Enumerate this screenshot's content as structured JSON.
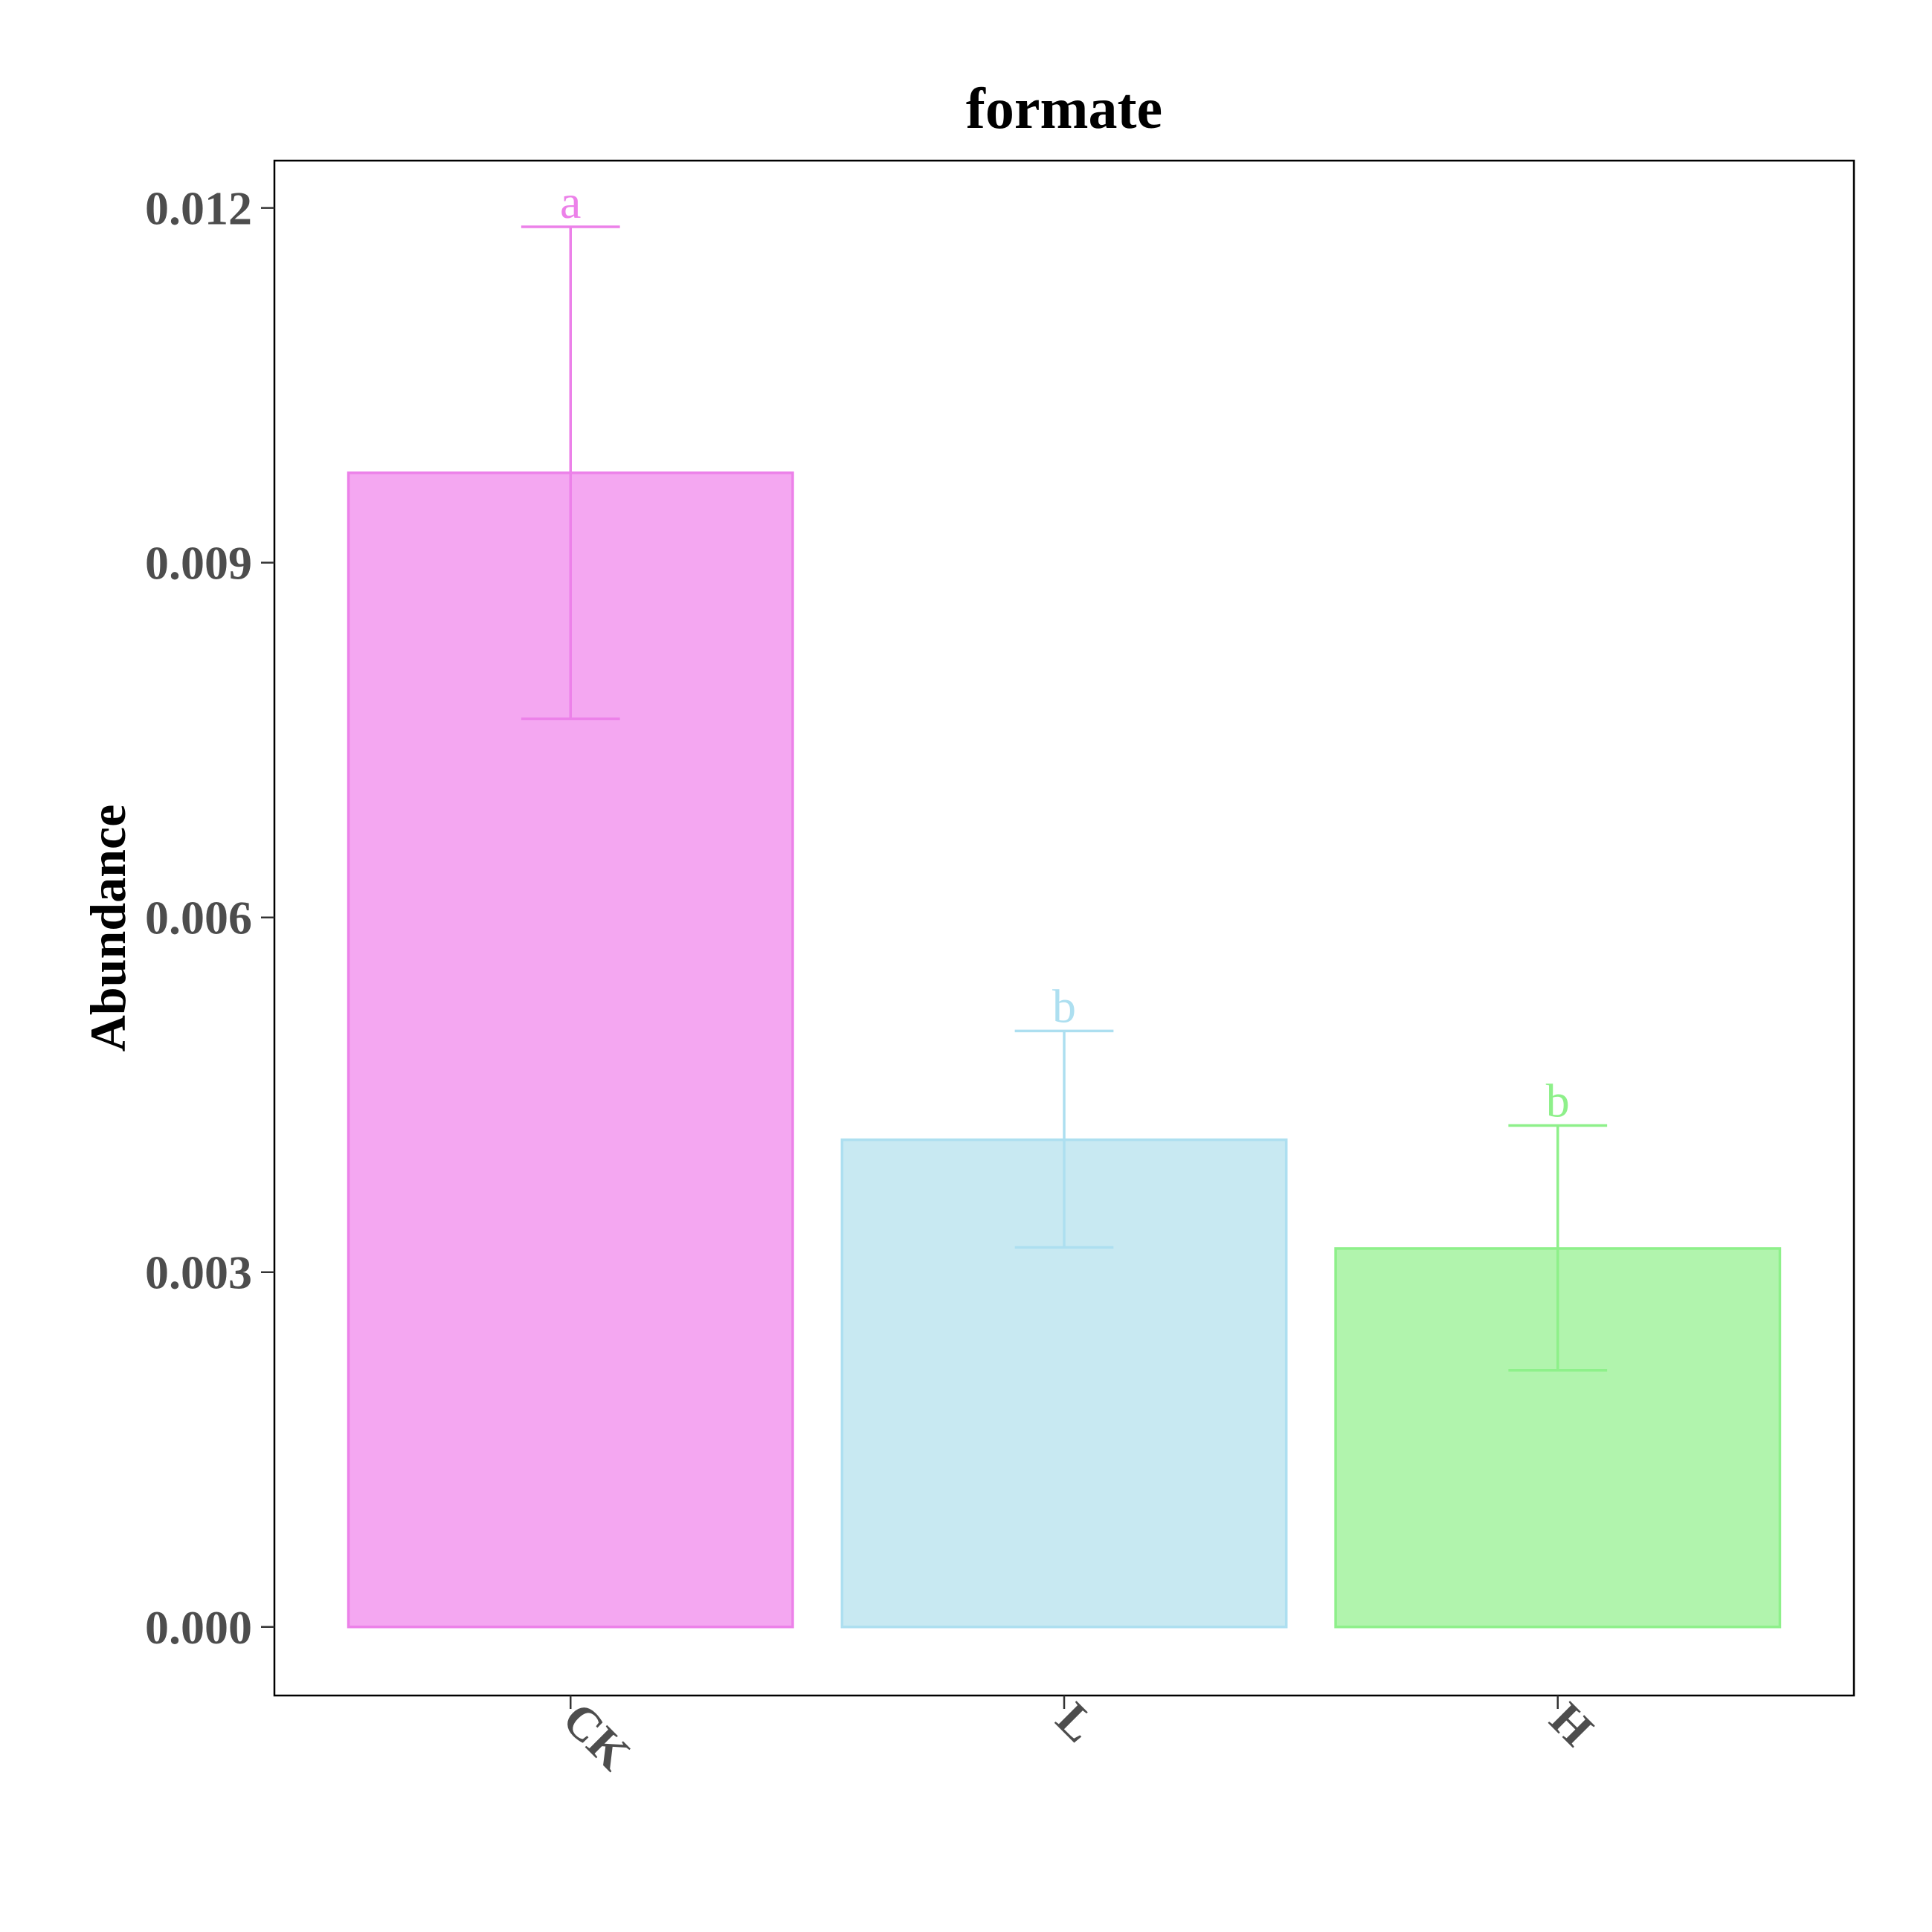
{
  "chart_data": {
    "type": "bar",
    "title": "formate",
    "xlabel": "",
    "ylabel": "Abundance",
    "ylim": [
      -0.00058,
      0.0124
    ],
    "yticks": [
      "0.000",
      "0.003",
      "0.006",
      "0.009",
      "0.012"
    ],
    "yticks_values": [
      0,
      0.003,
      0.006,
      0.009,
      0.012
    ],
    "grid": false,
    "categories": [
      "CK",
      "L",
      "H"
    ],
    "values": [
      0.00976,
      0.00412,
      0.0032
    ],
    "error_low": [
      0.00768,
      0.00321,
      0.00217
    ],
    "error_high": [
      0.01184,
      0.00504,
      0.00424
    ],
    "significance": [
      "a",
      "b",
      "b"
    ],
    "colors": {
      "fill": [
        "#f4a7f1",
        "#c8e9f2",
        "#b1f4ad"
      ],
      "stroke": [
        "#ec81e9",
        "#addff0",
        "#8ef08a"
      ]
    }
  }
}
